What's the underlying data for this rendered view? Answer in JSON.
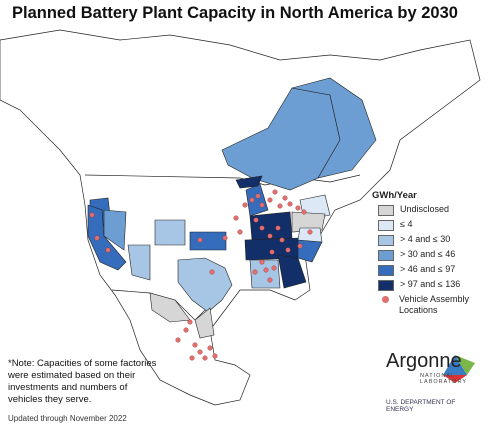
{
  "title": "Planned Battery Plant Capacity in North America by 2030",
  "legend": {
    "title": "GWh/Year",
    "items": [
      {
        "label": "Undisclosed",
        "color": "#d6d6d6"
      },
      {
        "label": "≤ 4",
        "color": "#dce8f6"
      },
      {
        "label": "> 4 and ≤ 30",
        "color": "#a7c6e6"
      },
      {
        "label": "> 30 and ≤ 46",
        "color": "#6c9ed3"
      },
      {
        "label": "> 46 and ≤ 97",
        "color": "#356cbb"
      },
      {
        "label": "> 97 and ≤ 136",
        "color": "#122f69"
      },
      {
        "label": "Vehicle Assembly Locations",
        "marker": "dot",
        "color": "#e07070"
      }
    ]
  },
  "note": "*Note: Capacities of some factories were estimated based on their investments and numbers of vehicles they serve.",
  "updated": "Updated through November 2022",
  "logo": {
    "name": "Argonne",
    "sub": "NATIONAL LABORATORY",
    "doe": "U.S. DEPARTMENT OF ENERGY"
  }
}
